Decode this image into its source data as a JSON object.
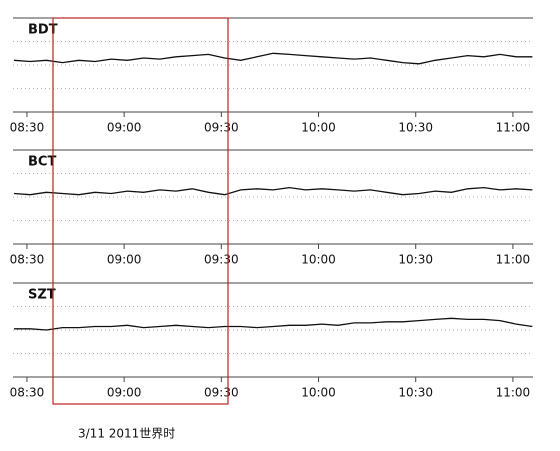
{
  "chart_data": [
    {
      "type": "line",
      "title": "BDT",
      "x": [
        506,
        511,
        516,
        521,
        526,
        531,
        536,
        541,
        546,
        551,
        556,
        561,
        566,
        571,
        576,
        581,
        586,
        591,
        596,
        601,
        606,
        611,
        616,
        621,
        626,
        631,
        636,
        641,
        646,
        651,
        656,
        661,
        666
      ],
      "values": [
        2.2,
        2.15,
        2.2,
        2.1,
        2.2,
        2.15,
        2.25,
        2.2,
        2.3,
        2.25,
        2.35,
        2.4,
        2.45,
        2.3,
        2.2,
        2.35,
        2.5,
        2.45,
        2.4,
        2.35,
        2.3,
        2.25,
        2.3,
        2.2,
        2.1,
        2.05,
        2.2,
        2.3,
        2.4,
        2.35,
        2.45,
        2.35,
        2.35
      ],
      "color": "#111",
      "xlim": [
        505.7,
        666.2
      ],
      "ylim": [
        0,
        4
      ],
      "xticks": [
        {
          "value": 510,
          "label": "08:30"
        },
        {
          "value": 540,
          "label": "09:00"
        },
        {
          "value": 570,
          "label": "09:30"
        },
        {
          "value": 600,
          "label": "10:00"
        },
        {
          "value": 630,
          "label": "10:30"
        },
        {
          "value": 660,
          "label": "11:00"
        }
      ],
      "yticks": [
        0,
        1,
        2,
        3,
        4
      ]
    },
    {
      "type": "line",
      "title": "BCT",
      "x": [
        506,
        511,
        516,
        521,
        526,
        531,
        536,
        541,
        546,
        551,
        556,
        561,
        566,
        571,
        576,
        581,
        586,
        591,
        596,
        601,
        606,
        611,
        616,
        621,
        626,
        631,
        636,
        641,
        646,
        651,
        656,
        661,
        666
      ],
      "values": [
        2.15,
        2.1,
        2.2,
        2.15,
        2.1,
        2.2,
        2.15,
        2.25,
        2.2,
        2.3,
        2.25,
        2.35,
        2.2,
        2.1,
        2.3,
        2.35,
        2.3,
        2.4,
        2.3,
        2.35,
        2.3,
        2.25,
        2.3,
        2.2,
        2.1,
        2.15,
        2.25,
        2.2,
        2.35,
        2.4,
        2.3,
        2.35,
        2.3
      ],
      "color": "#111",
      "xlim": [
        505.7,
        666.2
      ],
      "ylim": [
        0,
        4
      ],
      "xticks": [
        {
          "value": 510,
          "label": "08:30"
        },
        {
          "value": 540,
          "label": "09:00"
        },
        {
          "value": 570,
          "label": "09:30"
        },
        {
          "value": 600,
          "label": "10:00"
        },
        {
          "value": 630,
          "label": "10:30"
        },
        {
          "value": 660,
          "label": "11:00"
        }
      ],
      "yticks": [
        0,
        1,
        2,
        3,
        4
      ]
    },
    {
      "type": "line",
      "title": "SZT",
      "x": [
        506,
        511,
        516,
        521,
        526,
        531,
        536,
        541,
        546,
        551,
        556,
        561,
        566,
        571,
        576,
        581,
        586,
        591,
        596,
        601,
        606,
        611,
        616,
        621,
        626,
        631,
        636,
        641,
        646,
        651,
        656,
        661,
        666
      ],
      "values": [
        2.05,
        2.05,
        2.0,
        2.1,
        2.1,
        2.15,
        2.15,
        2.2,
        2.1,
        2.15,
        2.2,
        2.15,
        2.1,
        2.15,
        2.15,
        2.1,
        2.15,
        2.2,
        2.2,
        2.25,
        2.2,
        2.3,
        2.3,
        2.35,
        2.35,
        2.4,
        2.45,
        2.5,
        2.45,
        2.45,
        2.4,
        2.25,
        2.15
      ],
      "color": "#111",
      "xlim": [
        505.7,
        666.2
      ],
      "ylim": [
        0,
        4
      ],
      "xticks": [
        {
          "value": 510,
          "label": "08:30"
        },
        {
          "value": 540,
          "label": "09:00"
        },
        {
          "value": 570,
          "label": "09:30"
        },
        {
          "value": 600,
          "label": "10:00"
        },
        {
          "value": 630,
          "label": "10:30"
        },
        {
          "value": 660,
          "label": "11:00"
        }
      ],
      "yticks": [
        0,
        1,
        2,
        3,
        4
      ]
    }
  ],
  "caption": "3/11 2011世界时"
}
